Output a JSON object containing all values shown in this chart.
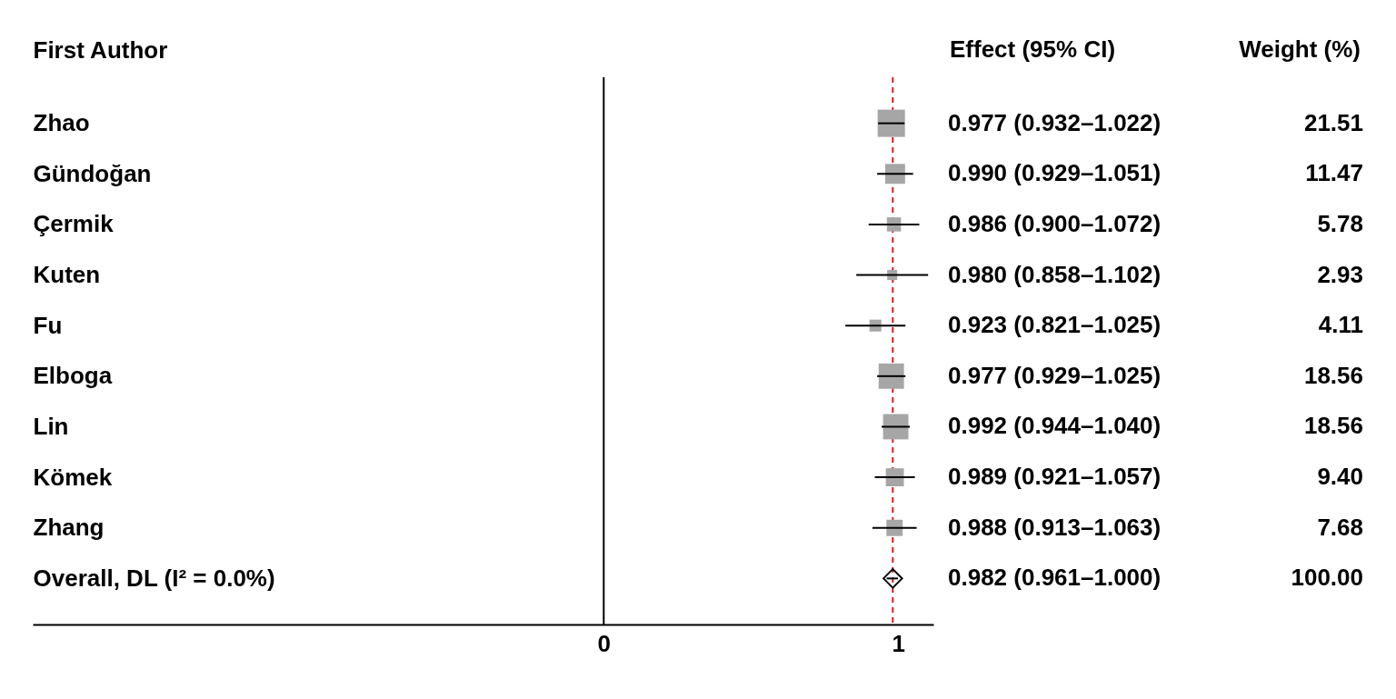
{
  "chart_data": {
    "type": "scatter",
    "orientation": "horizontal",
    "ylabel": "First Author",
    "categories": [
      "Zhao",
      "Gündoğan",
      "Çermik",
      "Kuten",
      "Fu",
      "Elboga",
      "Lin",
      "Kömek",
      "Zhang",
      "Overall, DL (I² = 0.0%)"
    ],
    "series": [
      {
        "color": "#a6a6a6",
        "marker": "square",
        "values": [
          0.977,
          0.99,
          0.986,
          0.98,
          0.923,
          0.977,
          0.992,
          0.989,
          0.988,
          null
        ],
        "errors": [
          [
            0.932,
            1.022
          ],
          [
            0.929,
            1.051
          ],
          [
            0.9,
            1.072
          ],
          [
            0.858,
            1.102
          ],
          [
            0.821,
            1.025
          ],
          [
            0.929,
            1.025
          ],
          [
            0.944,
            1.04
          ],
          [
            0.921,
            1.057
          ],
          [
            0.913,
            1.063
          ],
          null
        ],
        "sizes": [
          1,
          0.533,
          0.269,
          0.136,
          0.191,
          0.863,
          0.863,
          0.437,
          0.357,
          null
        ],
        "value_labels": [
          "0.977 (0.932–1.022)",
          "0.990 (0.929–1.051)",
          "0.986 (0.900–1.072)",
          "0.980 (0.858–1.102)",
          "0.923 (0.821–1.025)",
          "0.977 (0.929–1.025)",
          "0.992 (0.944–1.040)",
          "0.989 (0.921–1.057)",
          "0.988 (0.913–1.063)",
          null
        ]
      },
      {
        "color": "#000000",
        "marker": "diamond",
        "values": [
          null,
          null,
          null,
          null,
          null,
          null,
          null,
          null,
          null,
          0.982
        ],
        "errors": [
          null,
          null,
          null,
          null,
          null,
          null,
          null,
          null,
          null,
          [
            0.961,
            1.0
          ]
        ],
        "value_labels": [
          null,
          null,
          null,
          null,
          null,
          null,
          null,
          null,
          null,
          "0.982 (0.961–1.000)"
        ]
      }
    ],
    "xlim": [
      -1.94,
      1.12
    ],
    "xticks": [
      0,
      1
    ],
    "grid": false,
    "ref_lines": [
      {
        "axis": "x",
        "value": 0,
        "color": "#000000"
      },
      {
        "axis": "x",
        "value": 0.982,
        "color": "#cc2222",
        "line_style": "dashed"
      }
    ],
    "annotations": [
      "Effect (95% CI)",
      "Weight (%)",
      "21.51",
      "11.47",
      "5.78",
      "2.93",
      "4.11",
      "18.56",
      "18.56",
      "9.40",
      "7.68",
      "100.00"
    ]
  }
}
